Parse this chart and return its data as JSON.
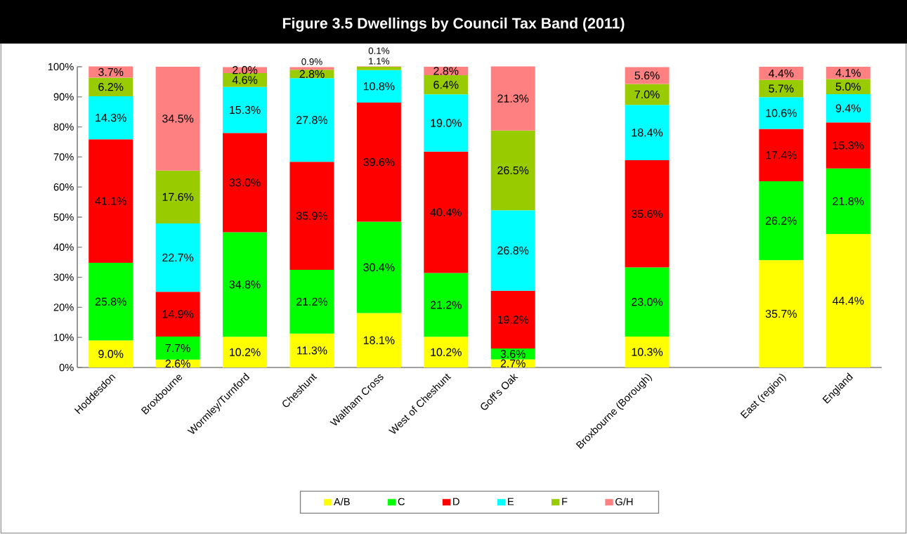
{
  "chart_data": {
    "type": "bar",
    "stacked": true,
    "title": "Figure 3.5 Dwellings by Council Tax Band (2011)",
    "categories": [
      "Hoddesdon",
      "Broxbourne",
      "Wormley/Turnford",
      "Cheshunt",
      "Waltham Cross",
      "West of Cheshunt",
      "Goff's Oak",
      null,
      "Broxbourne (Borough)",
      null,
      "East (region)",
      "England"
    ],
    "series": [
      {
        "name": "A/B",
        "color": "#ffff00",
        "values": [
          9.0,
          2.6,
          10.2,
          11.3,
          18.1,
          10.2,
          2.7,
          null,
          10.3,
          null,
          35.7,
          44.4
        ],
        "value_labels": [
          "9.0%",
          "2.6%",
          "10.2%",
          "11.3%",
          "18.1%",
          "10.2%",
          "2.7%",
          null,
          "10.3%",
          null,
          "35.7%",
          "44.4%"
        ]
      },
      {
        "name": "C",
        "color": "#00ff00",
        "values": [
          25.8,
          7.7,
          34.8,
          21.2,
          30.4,
          21.2,
          3.6,
          null,
          23.0,
          null,
          26.2,
          21.8
        ],
        "value_labels": [
          "25.8%",
          "7.7%",
          "34.8%",
          "21.2%",
          "30.4%",
          "21.2%",
          "3.6%",
          null,
          "23.0%",
          null,
          "26.2%",
          "21.8%"
        ]
      },
      {
        "name": "D",
        "color": "#ff0000",
        "values": [
          41.1,
          14.9,
          33.0,
          35.9,
          39.6,
          40.4,
          19.2,
          null,
          35.6,
          null,
          17.4,
          15.3
        ],
        "value_labels": [
          "41.1%",
          "14.9%",
          "33.0%",
          "35.9%",
          "39.6%",
          "40.4%",
          "19.2%",
          null,
          "35.6%",
          null,
          "17.4%",
          "15.3%"
        ]
      },
      {
        "name": "E",
        "color": "#00ffff",
        "values": [
          14.3,
          22.7,
          15.3,
          27.8,
          10.8,
          19.0,
          26.8,
          null,
          18.4,
          null,
          10.6,
          9.4
        ],
        "value_labels": [
          "14.3%",
          "22.7%",
          "15.3%",
          "27.8%",
          "10.8%",
          "19.0%",
          "26.8%",
          null,
          "18.4%",
          null,
          "10.6%",
          "9.4%"
        ]
      },
      {
        "name": "F",
        "color": "#99cc00",
        "values": [
          6.2,
          17.6,
          4.6,
          2.8,
          1.1,
          6.4,
          26.5,
          null,
          7.0,
          null,
          5.7,
          5.0
        ],
        "value_labels": [
          "6.2%",
          "17.6%",
          "4.6%",
          "2.8%",
          "1.1%",
          "6.4%",
          "26.5%",
          null,
          "7.0%",
          null,
          "5.7%",
          "5.0%"
        ]
      },
      {
        "name": "G/H",
        "color": "#ff8080",
        "values": [
          3.7,
          34.5,
          2.0,
          0.9,
          0.1,
          2.8,
          21.3,
          null,
          5.6,
          null,
          4.4,
          4.1
        ],
        "value_labels": [
          "3.7%",
          "34.5%",
          "2.0%",
          "0.9%",
          "0.1%",
          "2.8%",
          "21.3%",
          null,
          "5.6%",
          null,
          "4.4%",
          "4.1%"
        ]
      }
    ],
    "ylim": [
      0,
      100
    ],
    "yticks": [
      {
        "value": 0,
        "label": "0%"
      },
      {
        "value": 10,
        "label": "10%"
      },
      {
        "value": 20,
        "label": "20%"
      },
      {
        "value": 30,
        "label": "30%"
      },
      {
        "value": 40,
        "label": "40%"
      },
      {
        "value": 50,
        "label": "50%"
      },
      {
        "value": 60,
        "label": "60%"
      },
      {
        "value": 70,
        "label": "70%"
      },
      {
        "value": 80,
        "label": "80%"
      },
      {
        "value": 90,
        "label": "90%"
      },
      {
        "value": 100,
        "label": "100%"
      }
    ],
    "legend": "bottom"
  }
}
